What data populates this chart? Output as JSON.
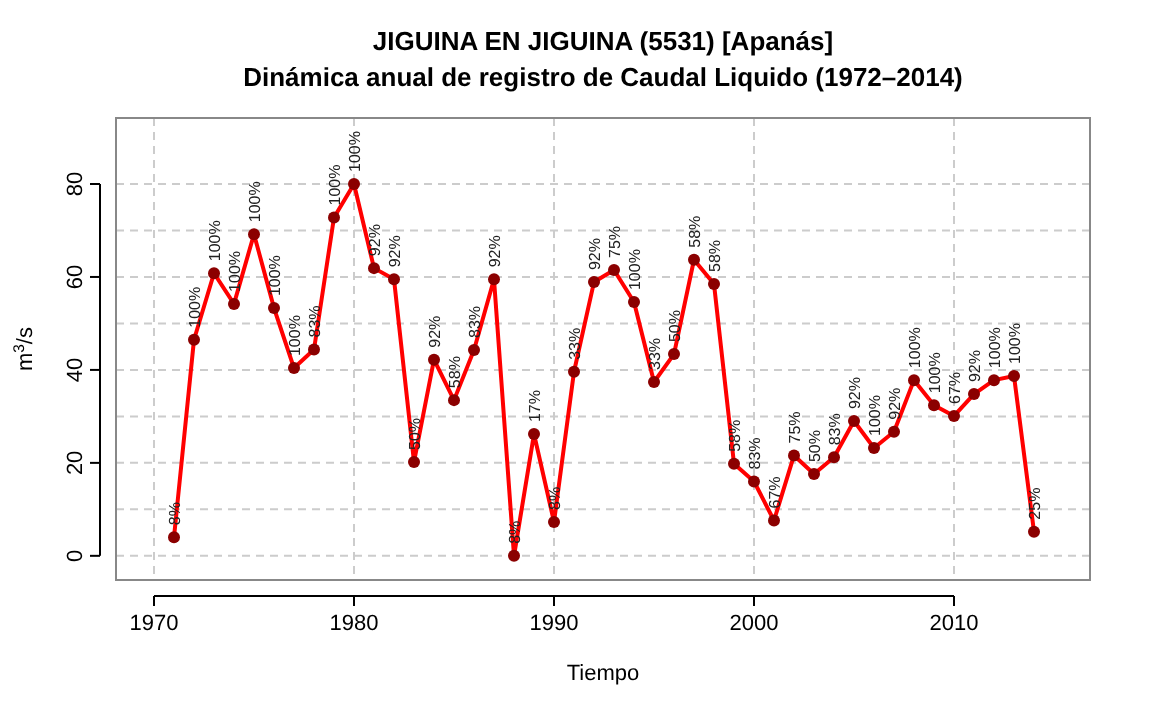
{
  "chart_data": {
    "type": "line",
    "title": "JIGUINA EN JIGUINA (5531) [Apanás]",
    "subtitle": "Dinámica anual de registro de Caudal Liquido (1972–2014)",
    "xlabel": "Tiempo",
    "ylabel": "m$^{3}$/s",
    "x": [
      1971,
      1972,
      1973,
      1974,
      1975,
      1976,
      1977,
      1978,
      1979,
      1980,
      1981,
      1982,
      1983,
      1984,
      1985,
      1986,
      1987,
      1988,
      1989,
      1990,
      1991,
      1992,
      1993,
      1994,
      1995,
      1996,
      1997,
      1998,
      1999,
      2000,
      2001,
      2002,
      2003,
      2004,
      2005,
      2006,
      2007,
      2008,
      2009,
      2010,
      2011,
      2012,
      2013,
      2014
    ],
    "series": [
      {
        "color": "#ff0000",
        "values": [
          4,
          46.5,
          60.8,
          54.2,
          69.2,
          53.3,
          40.4,
          44.4,
          72.8,
          80,
          61.9,
          59.5,
          20.2,
          42.2,
          33.5,
          44.3,
          59.5,
          0,
          26.2,
          7.3,
          39.6,
          58.9,
          61.5,
          54.6,
          37.4,
          43.4,
          63.7,
          58.5,
          19.8,
          16,
          7.6,
          21.6,
          17.6,
          21.2,
          29,
          23.2,
          26.7,
          37.8,
          32.4,
          30.1,
          34.8,
          37.8,
          38.7,
          5.2
        ],
        "colors": [
          "#8b0000",
          "#8b0000",
          "#8b0000",
          "#8b0000",
          "#8b0000",
          "#8b0000",
          "#8b0000",
          "#8b0000",
          "#8b0000",
          "#8b0000",
          "#8b0000",
          "#8b0000",
          "#8b0000",
          "#8b0000",
          "#8b0000",
          "#8b0000",
          "#8b0000",
          "#8b0000",
          "#8b0000",
          "#8b0000",
          "#8b0000",
          "#8b0000",
          "#8b0000",
          "#8b0000",
          "#8b0000",
          "#8b0000",
          "#8b0000",
          "#8b0000",
          "#8b0000",
          "#8b0000",
          "#8b0000",
          "#8b0000",
          "#8b0000",
          "#8b0000",
          "#8b0000",
          "#8b0000",
          "#8b0000",
          "#8b0000",
          "#8b0000",
          "#8b0000",
          "#8b0000",
          "#8b0000",
          "#8b0000",
          "#8b0000"
        ]
      }
    ],
    "annotations": [
      {
        "text": "8%",
        "x": 1971,
        "y": 4
      },
      {
        "text": "100%",
        "x": 1972,
        "y": 46.5
      },
      {
        "text": "100%",
        "x": 1973,
        "y": 60.8
      },
      {
        "text": "100%",
        "x": 1974,
        "y": 54.2
      },
      {
        "text": "100%",
        "x": 1975,
        "y": 69.2
      },
      {
        "text": "100%",
        "x": 1976,
        "y": 53.3
      },
      {
        "text": "100%",
        "x": 1977,
        "y": 40.4
      },
      {
        "text": "83%",
        "x": 1978,
        "y": 44.4
      },
      {
        "text": "100%",
        "x": 1979,
        "y": 72.8
      },
      {
        "text": "100%",
        "x": 1980,
        "y": 80
      },
      {
        "text": "92%",
        "x": 1981,
        "y": 61.9
      },
      {
        "text": "92%",
        "x": 1982,
        "y": 59.5
      },
      {
        "text": "50%",
        "x": 1983,
        "y": 20.2
      },
      {
        "text": "92%",
        "x": 1984,
        "y": 42.2
      },
      {
        "text": "58%",
        "x": 1985,
        "y": 33.5
      },
      {
        "text": "83%",
        "x": 1986,
        "y": 44.3
      },
      {
        "text": "92%",
        "x": 1987,
        "y": 59.5
      },
      {
        "text": "8%",
        "x": 1988,
        "y": 0
      },
      {
        "text": "17%",
        "x": 1989,
        "y": 26.2
      },
      {
        "text": "8%",
        "x": 1990,
        "y": 7.3
      },
      {
        "text": "33%",
        "x": 1991,
        "y": 39.6
      },
      {
        "text": "92%",
        "x": 1992,
        "y": 58.9
      },
      {
        "text": "75%",
        "x": 1993,
        "y": 61.5
      },
      {
        "text": "100%",
        "x": 1994,
        "y": 54.6
      },
      {
        "text": "33%",
        "x": 1995,
        "y": 37.4
      },
      {
        "text": "50%",
        "x": 1996,
        "y": 43.4
      },
      {
        "text": "58%",
        "x": 1997,
        "y": 63.7
      },
      {
        "text": "58%",
        "x": 1998,
        "y": 58.5
      },
      {
        "text": "58%",
        "x": 1999,
        "y": 19.8
      },
      {
        "text": "83%",
        "x": 2000,
        "y": 16
      },
      {
        "text": "67%",
        "x": 2001,
        "y": 7.6
      },
      {
        "text": "75%",
        "x": 2002,
        "y": 21.6
      },
      {
        "text": "50%",
        "x": 2003,
        "y": 17.6
      },
      {
        "text": "83%",
        "x": 2004,
        "y": 21.2
      },
      {
        "text": "92%",
        "x": 2005,
        "y": 29
      },
      {
        "text": "100%",
        "x": 2006,
        "y": 23.2
      },
      {
        "text": "92%",
        "x": 2007,
        "y": 26.7
      },
      {
        "text": "100%",
        "x": 2008,
        "y": 37.8
      },
      {
        "text": "100%",
        "x": 2009,
        "y": 32.4
      },
      {
        "text": "67%",
        "x": 2010,
        "y": 30.1
      },
      {
        "text": "92%",
        "x": 2011,
        "y": 34.8
      },
      {
        "text": "100%",
        "x": 2012,
        "y": 37.8
      },
      {
        "text": "100%",
        "x": 2013,
        "y": 38.7
      },
      {
        "text": "25%",
        "x": 2014,
        "y": 5.2
      }
    ],
    "xlim": [
      1968.1,
      2016.8
    ],
    "xticks": [
      1970,
      1980,
      1990,
      2000,
      2010
    ],
    "ylim": [
      -5.2,
      94.2
    ],
    "yticks": [
      0,
      {
        "value": 10,
        "label": null
      },
      20,
      {
        "value": 30,
        "label": null
      },
      40,
      {
        "value": 50,
        "label": null
      },
      60,
      {
        "value": 70,
        "label": null
      },
      80
    ],
    "grid": true,
    "marker": "circle",
    "line_style": "solid"
  }
}
